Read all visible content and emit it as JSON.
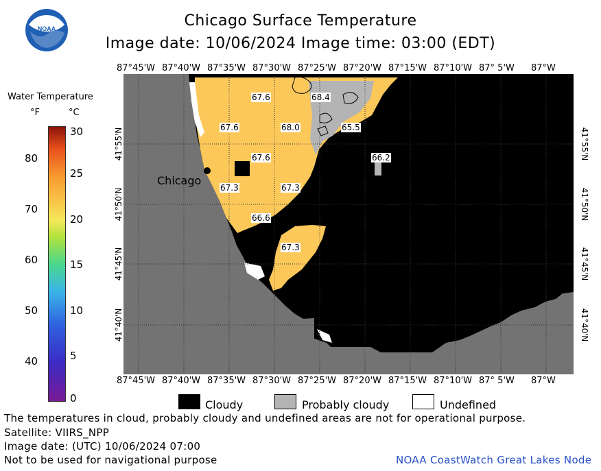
{
  "header": {
    "title": "Chicago Surface Temperature",
    "image_date_line": "Image date: 10/06/2024     Image time: 03:00 (EDT)"
  },
  "logo": {
    "text": "NOAA"
  },
  "colorbar": {
    "title": "Water Temperature",
    "unit_f": "°F",
    "unit_c": "°C",
    "f_ticks": [
      "80",
      "70",
      "60",
      "50",
      "40"
    ],
    "c_ticks": [
      "30",
      "25",
      "20",
      "15",
      "10",
      "5",
      "0"
    ]
  },
  "map": {
    "lon_labels": [
      "87°45'W",
      "87°40'W",
      "87°35'W",
      "87°30'W",
      "87°25'W",
      "87°20'W",
      "87°15'W",
      "87°10'W",
      "87° 5'W",
      "87°W"
    ],
    "lat_labels": [
      "41°55'N",
      "41°50'N",
      "41°45'N",
      "41°40'N"
    ],
    "city_label": "Chicago",
    "temperature_labels": [
      "67.6",
      "68.4",
      "67.6",
      "68.0",
      "65.5",
      "67.6",
      "66.2",
      "67.3",
      "67.3",
      "66.6",
      "67.3"
    ]
  },
  "legend": {
    "cloudy": "Cloudy",
    "probably_cloudy": "Probably cloudy",
    "undefined": "Undefined"
  },
  "footer": {
    "disclaimer": "The temperatures in cloud, probably cloudy and undefined areas are not for operational purpose.",
    "satellite": "Satellite: VIIRS_NPP",
    "utc_date": "Image date: (UTC) 10/06/2024  07:00",
    "nav_warning": "Not to be used for navigational purpose",
    "credit": "NOAA CoastWatch Great Lakes Node"
  },
  "colors": {
    "land": "#737373",
    "cloudy": "#000000",
    "probably_cloudy": "#b4b4b4",
    "water_warm": "#fcc85a",
    "credit_text": "#2850c8"
  }
}
